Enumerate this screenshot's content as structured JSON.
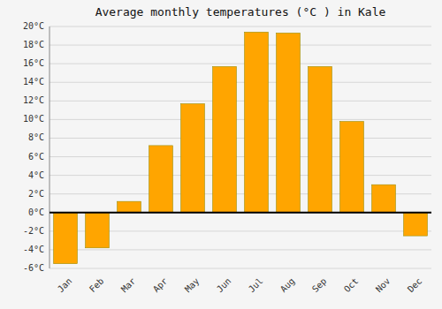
{
  "chart_data": {
    "type": "bar",
    "title": "Average monthly temperatures (°C ) in Kale",
    "categories": [
      "Jan",
      "Feb",
      "Mar",
      "Apr",
      "May",
      "Jun",
      "Jul",
      "Aug",
      "Sep",
      "Oct",
      "Nov",
      "Dec"
    ],
    "values": [
      -5.5,
      -3.8,
      1.2,
      7.2,
      11.7,
      15.7,
      19.4,
      19.3,
      15.7,
      9.8,
      3.0,
      -2.5
    ],
    "color": "#FFA500",
    "ylim": [
      -6,
      20
    ],
    "yticks": [
      {
        "value": -6,
        "label": "-6°C"
      },
      {
        "value": -4,
        "label": "-4°C"
      },
      {
        "value": -2,
        "label": "-2°C"
      },
      {
        "value": 0,
        "label": "0°C"
      },
      {
        "value": 2,
        "label": "2°C"
      },
      {
        "value": 4,
        "label": "4°C"
      },
      {
        "value": 6,
        "label": "6°C"
      },
      {
        "value": 8,
        "label": "8°C"
      },
      {
        "value": 10,
        "label": "10°C"
      },
      {
        "value": 12,
        "label": "12°C"
      },
      {
        "value": 14,
        "label": "14°C"
      },
      {
        "value": 16,
        "label": "16°C"
      },
      {
        "value": 18,
        "label": "18°C"
      },
      {
        "value": 20,
        "label": "20°C"
      }
    ],
    "grid": true
  }
}
